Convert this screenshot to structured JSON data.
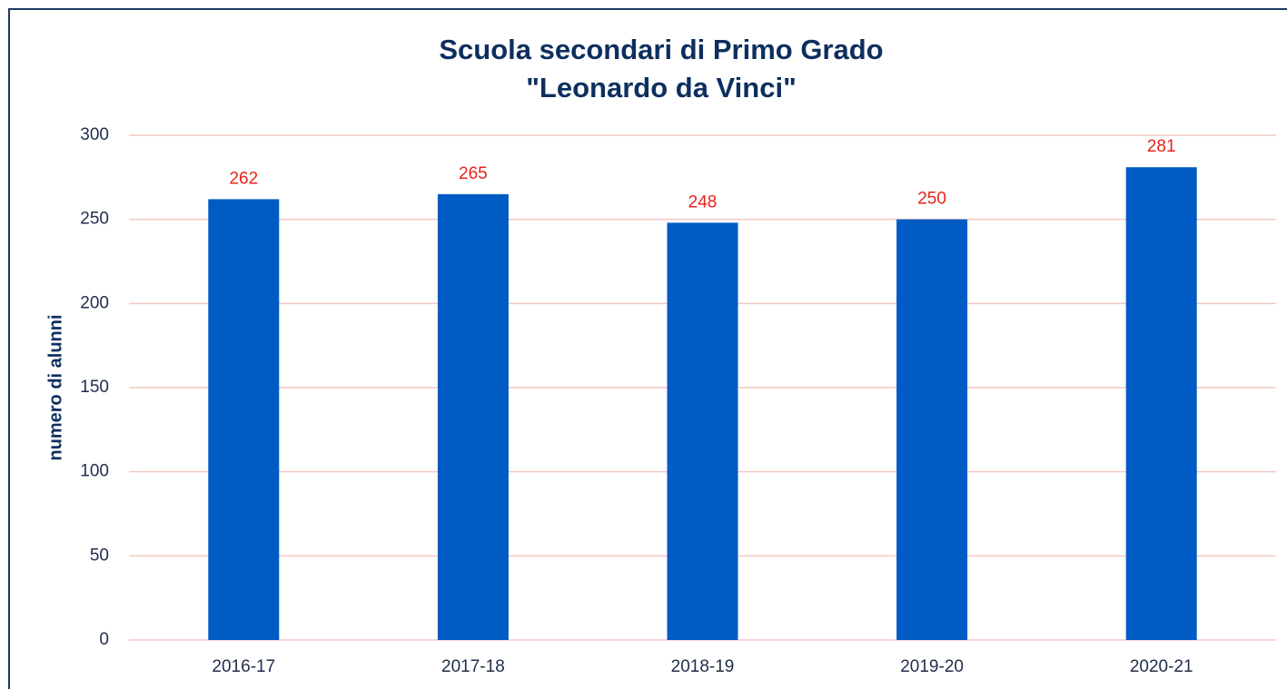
{
  "chart_data": {
    "type": "bar",
    "title": [
      "Scuola secondari di Primo Grado",
      "\"Leonardo da Vinci\""
    ],
    "y_label": "numero di alunni",
    "categories": [
      "2016-17",
      "2017-18",
      "2018-19",
      "2019-20",
      "2020-21"
    ],
    "values": [
      262,
      265,
      248,
      250,
      281
    ],
    "color": "#005bc5",
    "label_color": "#e8231a",
    "grid_color": "#f4c7c3",
    "ylim": [
      0,
      300
    ],
    "yticks": [
      0,
      50,
      100,
      150,
      200,
      250,
      300
    ],
    "grid": true
  }
}
